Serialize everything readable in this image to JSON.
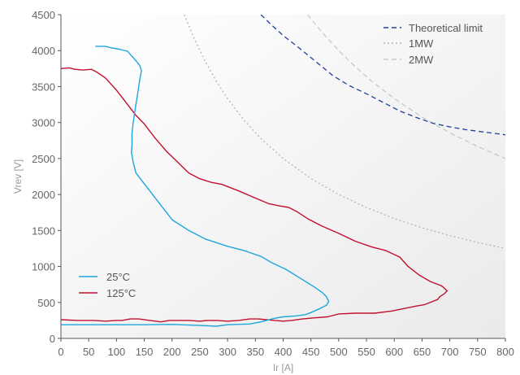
{
  "chart_data": {
    "type": "line",
    "xlabel": "Ir [A]",
    "ylabel": "Vrev [V]",
    "xlim": [
      0,
      800
    ],
    "ylim": [
      0,
      4500
    ],
    "xticks": [
      "0",
      "50",
      "100",
      "150",
      "200",
      "250",
      "300",
      "350",
      "400",
      "450",
      "500",
      "550",
      "600",
      "650",
      "700",
      "750",
      "800"
    ],
    "yticks": [
      "0",
      "500",
      "1000",
      "1500",
      "2000",
      "2500",
      "3000",
      "3500",
      "4000",
      "4500"
    ],
    "grid": false,
    "legend_top_right": [
      "Theoretical limit",
      "1MW",
      "2MW"
    ],
    "legend_bottom_left": [
      "25°C",
      "125°C"
    ],
    "series": [
      {
        "name": "25°C",
        "color": "#1ea6dc",
        "style": "solid",
        "points": [
          [
            62,
            4060
          ],
          [
            80,
            4060
          ],
          [
            90,
            4040
          ],
          [
            105,
            4020
          ],
          [
            120,
            3990
          ],
          [
            128,
            3920
          ],
          [
            135,
            3860
          ],
          [
            142,
            3790
          ],
          [
            145,
            3720
          ],
          [
            142,
            3600
          ],
          [
            138,
            3400
          ],
          [
            134,
            3200
          ],
          [
            130,
            3000
          ],
          [
            128,
            2850
          ],
          [
            128,
            2700
          ],
          [
            127,
            2580
          ],
          [
            130,
            2450
          ],
          [
            135,
            2300
          ],
          [
            145,
            2200
          ],
          [
            160,
            2050
          ],
          [
            180,
            1850
          ],
          [
            200,
            1650
          ],
          [
            230,
            1500
          ],
          [
            260,
            1380
          ],
          [
            300,
            1280
          ],
          [
            330,
            1220
          ],
          [
            360,
            1140
          ],
          [
            380,
            1050
          ],
          [
            405,
            960
          ],
          [
            430,
            840
          ],
          [
            455,
            720
          ],
          [
            470,
            640
          ],
          [
            478,
            580
          ],
          [
            482,
            510
          ],
          [
            478,
            460
          ],
          [
            465,
            410
          ],
          [
            450,
            360
          ],
          [
            440,
            330
          ],
          [
            420,
            310
          ],
          [
            400,
            300
          ],
          [
            385,
            280
          ],
          [
            360,
            230
          ],
          [
            340,
            200
          ],
          [
            300,
            190
          ],
          [
            280,
            170
          ],
          [
            250,
            180
          ],
          [
            200,
            195
          ],
          [
            150,
            190
          ],
          [
            130,
            190
          ],
          [
            100,
            190
          ],
          [
            50,
            190
          ],
          [
            0,
            190
          ]
        ]
      },
      {
        "name": "125°C",
        "color": "#c1102e",
        "style": "solid",
        "points": [
          [
            0,
            3750
          ],
          [
            15,
            3760
          ],
          [
            25,
            3740
          ],
          [
            40,
            3730
          ],
          [
            55,
            3740
          ],
          [
            65,
            3700
          ],
          [
            80,
            3620
          ],
          [
            100,
            3450
          ],
          [
            120,
            3250
          ],
          [
            135,
            3100
          ],
          [
            150,
            2980
          ],
          [
            170,
            2780
          ],
          [
            190,
            2600
          ],
          [
            210,
            2450
          ],
          [
            230,
            2300
          ],
          [
            250,
            2220
          ],
          [
            270,
            2170
          ],
          [
            290,
            2140
          ],
          [
            320,
            2050
          ],
          [
            350,
            1950
          ],
          [
            375,
            1870
          ],
          [
            395,
            1840
          ],
          [
            410,
            1820
          ],
          [
            425,
            1760
          ],
          [
            445,
            1660
          ],
          [
            470,
            1560
          ],
          [
            500,
            1460
          ],
          [
            530,
            1350
          ],
          [
            560,
            1270
          ],
          [
            585,
            1220
          ],
          [
            610,
            1130
          ],
          [
            625,
            1000
          ],
          [
            645,
            880
          ],
          [
            665,
            790
          ],
          [
            685,
            730
          ],
          [
            690,
            700
          ],
          [
            695,
            660
          ],
          [
            690,
            620
          ],
          [
            682,
            580
          ],
          [
            678,
            540
          ],
          [
            668,
            510
          ],
          [
            655,
            470
          ],
          [
            640,
            450
          ],
          [
            620,
            420
          ],
          [
            595,
            380
          ],
          [
            565,
            350
          ],
          [
            530,
            350
          ],
          [
            500,
            340
          ],
          [
            480,
            300
          ],
          [
            455,
            285
          ],
          [
            435,
            270
          ],
          [
            415,
            250
          ],
          [
            400,
            240
          ],
          [
            385,
            250
          ],
          [
            370,
            260
          ],
          [
            355,
            270
          ],
          [
            340,
            270
          ],
          [
            320,
            250
          ],
          [
            300,
            240
          ],
          [
            280,
            250
          ],
          [
            265,
            250
          ],
          [
            250,
            240
          ],
          [
            230,
            250
          ],
          [
            210,
            250
          ],
          [
            195,
            250
          ],
          [
            180,
            230
          ],
          [
            160,
            250
          ],
          [
            140,
            270
          ],
          [
            125,
            270
          ],
          [
            110,
            250
          ],
          [
            100,
            250
          ],
          [
            80,
            240
          ],
          [
            60,
            250
          ],
          [
            30,
            250
          ],
          [
            0,
            260
          ]
        ]
      },
      {
        "name": "Theoretical limit",
        "color": "#1f3f99",
        "style": "dashed",
        "points": [
          [
            360,
            4500
          ],
          [
            380,
            4350
          ],
          [
            400,
            4210
          ],
          [
            430,
            4030
          ],
          [
            460,
            3840
          ],
          [
            490,
            3650
          ],
          [
            520,
            3510
          ],
          [
            550,
            3400
          ],
          [
            580,
            3280
          ],
          [
            610,
            3160
          ],
          [
            640,
            3070
          ],
          [
            670,
            2990
          ],
          [
            700,
            2940
          ],
          [
            730,
            2900
          ],
          [
            760,
            2870
          ],
          [
            790,
            2840
          ],
          [
            800,
            2830
          ]
        ]
      },
      {
        "name": "1MW",
        "color": "#b5b5b5",
        "style": "dotted",
        "points": [
          [
            222,
            4500
          ],
          [
            240,
            4167
          ],
          [
            260,
            3846
          ],
          [
            280,
            3571
          ],
          [
            300,
            3333
          ],
          [
            330,
            3030
          ],
          [
            360,
            2778
          ],
          [
            400,
            2500
          ],
          [
            450,
            2222
          ],
          [
            500,
            2000
          ],
          [
            550,
            1818
          ],
          [
            600,
            1667
          ],
          [
            650,
            1538
          ],
          [
            700,
            1429
          ],
          [
            750,
            1333
          ],
          [
            800,
            1250
          ]
        ]
      },
      {
        "name": "2MW",
        "color": "#c8c8c8",
        "style": "dashed",
        "points": [
          [
            444,
            4500
          ],
          [
            470,
            4255
          ],
          [
            500,
            4000
          ],
          [
            530,
            3774
          ],
          [
            560,
            3571
          ],
          [
            600,
            3333
          ],
          [
            650,
            3077
          ],
          [
            700,
            2857
          ],
          [
            750,
            2667
          ],
          [
            800,
            2500
          ]
        ]
      }
    ]
  }
}
